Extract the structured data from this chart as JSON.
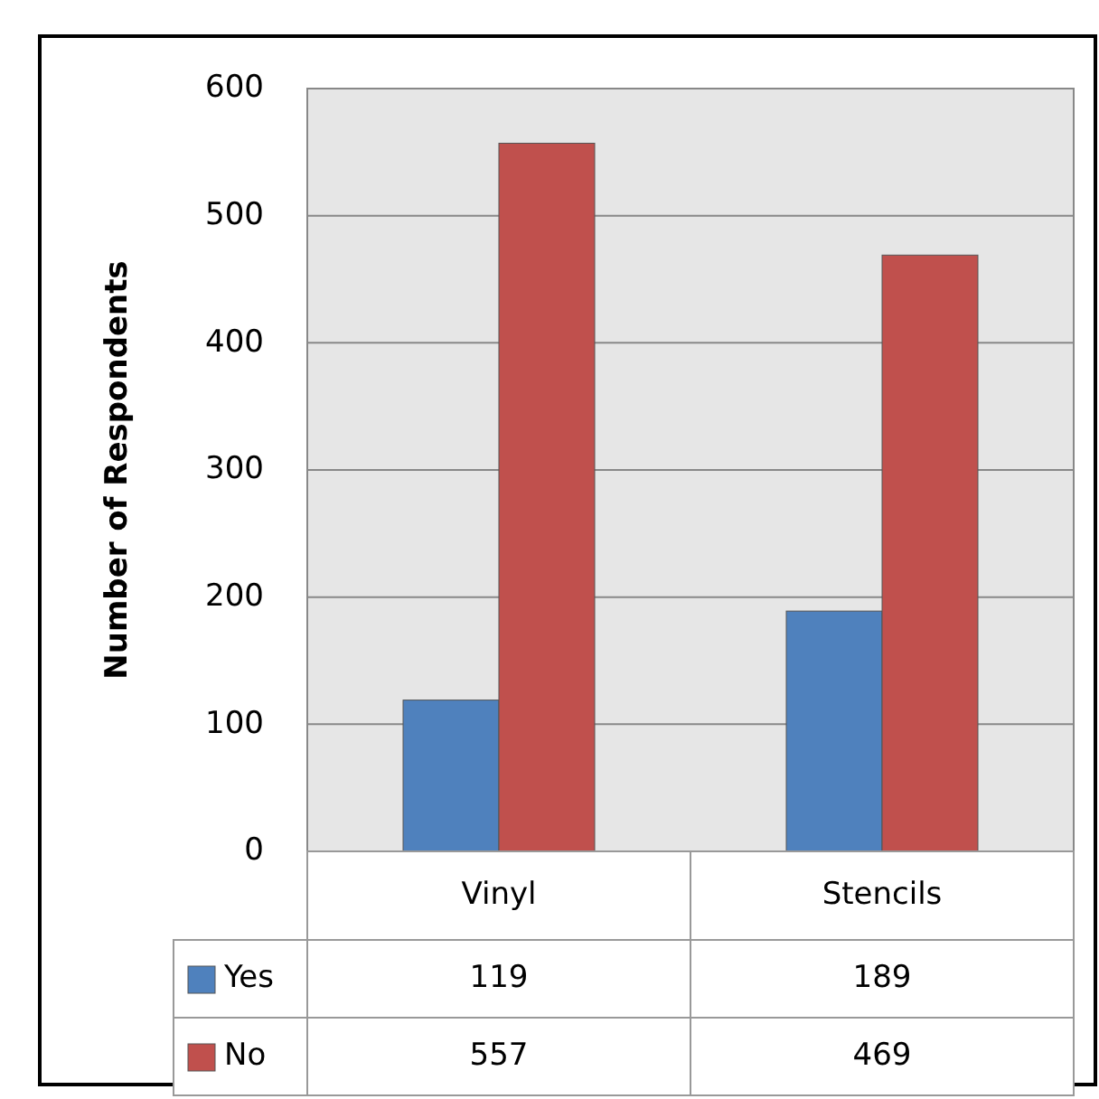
{
  "chart_data": {
    "type": "bar",
    "ylabel": "Number of Respondents",
    "categories": [
      "Vinyl",
      "Stencils"
    ],
    "series": [
      {
        "name": "Yes",
        "color": "#4f81bd",
        "values": [
          119,
          189
        ]
      },
      {
        "name": "No",
        "color": "#c0504d",
        "values": [
          557,
          469
        ]
      }
    ],
    "ylim": [
      0,
      600
    ],
    "yticks": [
      0,
      100,
      200,
      300,
      400,
      500,
      600
    ],
    "grid": "y",
    "legend": "bottom",
    "data_labels": true
  }
}
